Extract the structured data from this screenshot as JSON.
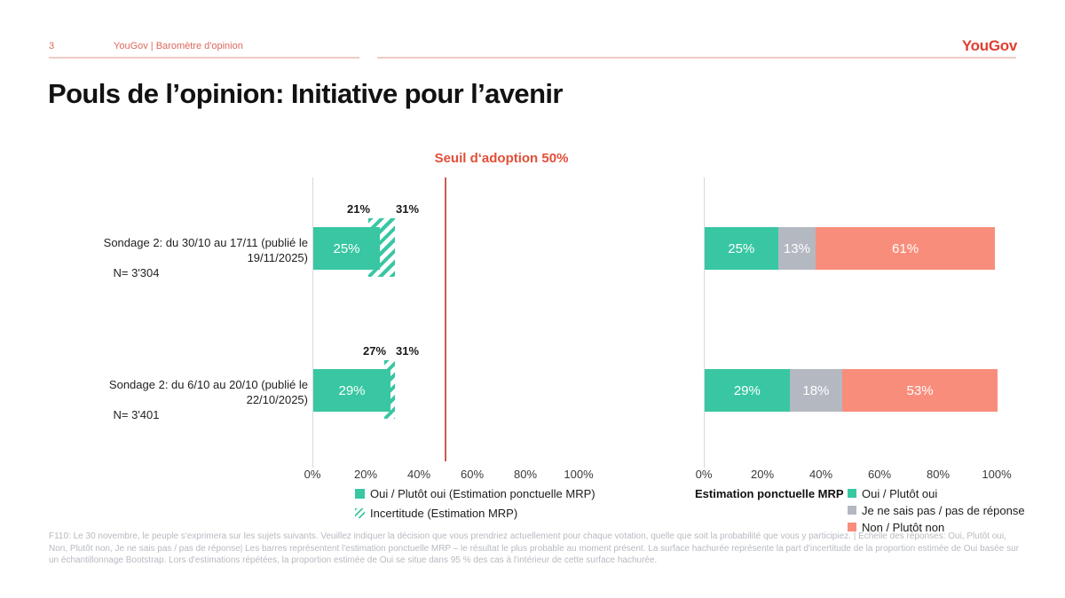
{
  "header": {
    "page_number": "3",
    "breadcrumb": "YouGov | Baromètre d'opinion",
    "logo": "YouGov"
  },
  "title": "Pouls de l’opinion: Initiative pour l’avenir",
  "colors": {
    "teal": "#38C7A2",
    "gray": "#B4B8C1",
    "salmon": "#F98D7B",
    "threshold_line": "#C6604C",
    "seuil_text": "#E34F38",
    "header_text": "#DD685C",
    "logo_red": "#E23E30",
    "rule_pink": "#EECCC6",
    "footnote_gray": "#B7BAC1"
  },
  "chart_data": [
    {
      "type": "bar",
      "title": "Seuil d‘adoption 50%",
      "threshold_pct": 50,
      "xlim": [
        0,
        100
      ],
      "x_ticks": [
        "0%",
        "20%",
        "40%",
        "60%",
        "80%",
        "100%"
      ],
      "rows": [
        {
          "label": "Sondage 2: du 30/10 au 17/11 (publié le 19/11/2025)",
          "n": "N= 3'304",
          "value": 25,
          "value_label": "25%",
          "uncertainty_low": 21,
          "uncertainty_high": 31,
          "uncertainty_low_label": "21%",
          "uncertainty_high_label": "31%"
        },
        {
          "label": "Sondage 2: du 6/10 au 20/10 (publié le 22/10/2025)",
          "n": "N= 3'401",
          "value": 29,
          "value_label": "29%",
          "uncertainty_low": 27,
          "uncertainty_high": 31,
          "uncertainty_low_label": "27%",
          "uncertainty_high_label": "31%"
        }
      ],
      "legend": [
        {
          "swatch": "teal-solid",
          "label": "Oui / Plutôt oui (Estimation ponctuelle MRP)"
        },
        {
          "swatch": "teal-hatch",
          "label": "Incertitude (Estimation MRP)"
        }
      ]
    },
    {
      "type": "stacked-bar",
      "xlim": [
        0,
        100
      ],
      "x_ticks": [
        "0%",
        "20%",
        "40%",
        "60%",
        "80%",
        "100%"
      ],
      "legend_title": "Estimation ponctuelle MRP",
      "series": [
        {
          "name": "Oui / Plutôt oui",
          "color_key": "teal"
        },
        {
          "name": "Je ne sais pas / pas de réponse",
          "color_key": "gray"
        },
        {
          "name": "Non / Plutôt non",
          "color_key": "salmon"
        }
      ],
      "rows": [
        {
          "values": [
            25,
            13,
            61
          ],
          "labels": [
            "25%",
            "13%",
            "61%"
          ]
        },
        {
          "values": [
            29,
            18,
            53
          ],
          "labels": [
            "29%",
            "18%",
            "53%"
          ]
        }
      ]
    }
  ],
  "footnote": "F110: Le 30 novembre, le peuple s'exprimera sur les sujets suivants. Veuillez indiquer la décision que vous prendriez actuellement pour chaque votation, quelle que soit la probabilité que vous y participiez. | Echelle des réponses: Oui, Plutôt oui, Non, Plutôt non, Je ne sais pas / pas de réponse| Les barres représentent l'estimation ponctuelle MRP – le résultat le plus probable au moment présent. La surface hachurée représente la part d'incertitude de la proportion estimée de Oui basée sur un échantillonnage Bootstrap. Lors d'estimations répétées, la proportion estimée de Oui se situe dans 95 % des cas à l'intérieur de cette surface hachurée."
}
